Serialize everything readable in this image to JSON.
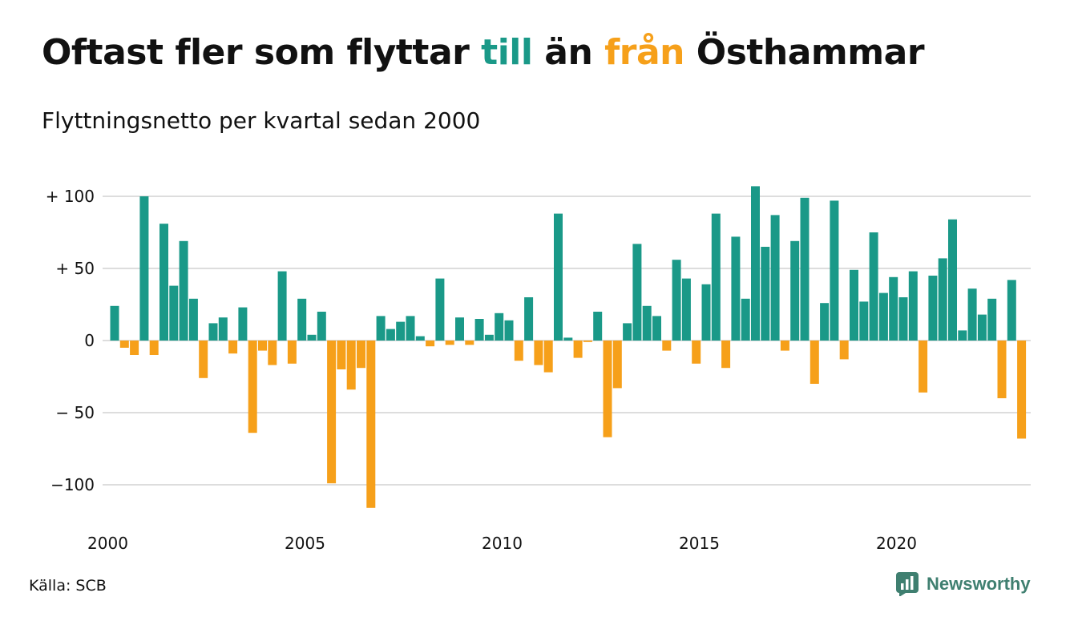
{
  "title": {
    "part1": "Oftast fler som flyttar ",
    "part2": "till",
    "part3": " än ",
    "part4": "från",
    "part5": " Östhammar"
  },
  "subtitle": "Flyttningsnetto per kvartal sedan 2000",
  "source": "Källa: SCB",
  "brand": {
    "name": "Newsworthy",
    "icon": "newsworthy-logo-icon"
  },
  "colors": {
    "positive": "#1a9988",
    "negative": "#f6a01a",
    "grid": "#dddddd"
  },
  "chart_data": {
    "type": "bar",
    "title": "Oftast fler som flyttar till än från Östhammar",
    "subtitle": "Flyttningsnetto per kvartal sedan 2000",
    "xlabel": "",
    "ylabel": "",
    "ylim": [
      -120,
      110
    ],
    "grid": true,
    "yticks": [
      {
        "value": 100,
        "label": "+ 100"
      },
      {
        "value": 50,
        "label": "+  50"
      },
      {
        "value": 0,
        "label": "0"
      },
      {
        "value": -50,
        "label": "− 50"
      },
      {
        "value": -100,
        "label": "−100"
      }
    ],
    "xticks": [
      "2000",
      "2005",
      "2010",
      "2015",
      "2020"
    ],
    "start": "2000 Q1",
    "values": [
      24,
      -5,
      -10,
      100,
      -10,
      81,
      38,
      69,
      29,
      -26,
      12,
      16,
      -9,
      23,
      -64,
      -7,
      -17,
      48,
      -16,
      29,
      4,
      20,
      -99,
      -20,
      -34,
      -19,
      -116,
      17,
      8,
      13,
      17,
      3,
      -4,
      43,
      -3,
      16,
      -3,
      15,
      4,
      19,
      14,
      -14,
      30,
      -17,
      -22,
      88,
      2,
      -12,
      -1,
      20,
      -67,
      -33,
      12,
      67,
      24,
      17,
      -7,
      56,
      43,
      -16,
      39,
      88,
      -19,
      72,
      29,
      107,
      65,
      87,
      -7,
      69,
      99,
      -30,
      26,
      97,
      -13,
      49,
      27,
      75,
      33,
      44,
      30,
      48,
      -36,
      45,
      57,
      84,
      7,
      36,
      18,
      29,
      -40,
      42,
      -68
    ]
  }
}
